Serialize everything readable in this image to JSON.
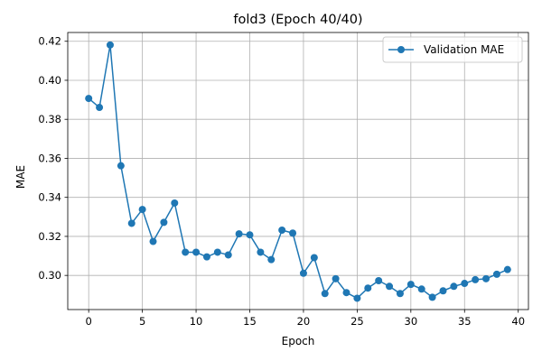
{
  "chart_data": {
    "type": "line",
    "title": "fold3 (Epoch 40/40)",
    "xlabel": "Epoch",
    "ylabel": "MAE",
    "xlim": [
      -1.95,
      40.95
    ],
    "ylim": [
      0.2825,
      0.4245
    ],
    "xticks": [
      0,
      5,
      10,
      15,
      20,
      25,
      30,
      35,
      40
    ],
    "xtick_labels": [
      "0",
      "5",
      "10",
      "15",
      "20",
      "25",
      "30",
      "35",
      "40"
    ],
    "yticks": [
      0.3,
      0.32,
      0.34,
      0.36,
      0.38,
      0.4,
      0.42
    ],
    "ytick_labels": [
      "0.30",
      "0.32",
      "0.34",
      "0.36",
      "0.38",
      "0.40",
      "0.42"
    ],
    "grid": true,
    "legend_position": "top-right",
    "series": [
      {
        "name": "Validation MAE",
        "color": "#1f77b4",
        "marker": "circle",
        "x": [
          0,
          1,
          2,
          3,
          4,
          5,
          6,
          7,
          8,
          9,
          10,
          11,
          12,
          13,
          14,
          15,
          16,
          17,
          18,
          19,
          20,
          21,
          22,
          23,
          24,
          25,
          26,
          27,
          28,
          29,
          30,
          31,
          32,
          33,
          34,
          35,
          36,
          37,
          38,
          39
        ],
        "y": [
          0.3907,
          0.3861,
          0.4181,
          0.3562,
          0.3267,
          0.3338,
          0.3174,
          0.3272,
          0.3371,
          0.3119,
          0.3119,
          0.3095,
          0.3119,
          0.3105,
          0.3213,
          0.3208,
          0.3119,
          0.3081,
          0.3232,
          0.3217,
          0.3011,
          0.3091,
          0.2907,
          0.2983,
          0.2912,
          0.2883,
          0.2935,
          0.2973,
          0.2944,
          0.2907,
          0.2954,
          0.293,
          0.2888,
          0.2921,
          0.2944,
          0.2959,
          0.2978,
          0.2983,
          0.3006,
          0.303
        ]
      }
    ]
  }
}
